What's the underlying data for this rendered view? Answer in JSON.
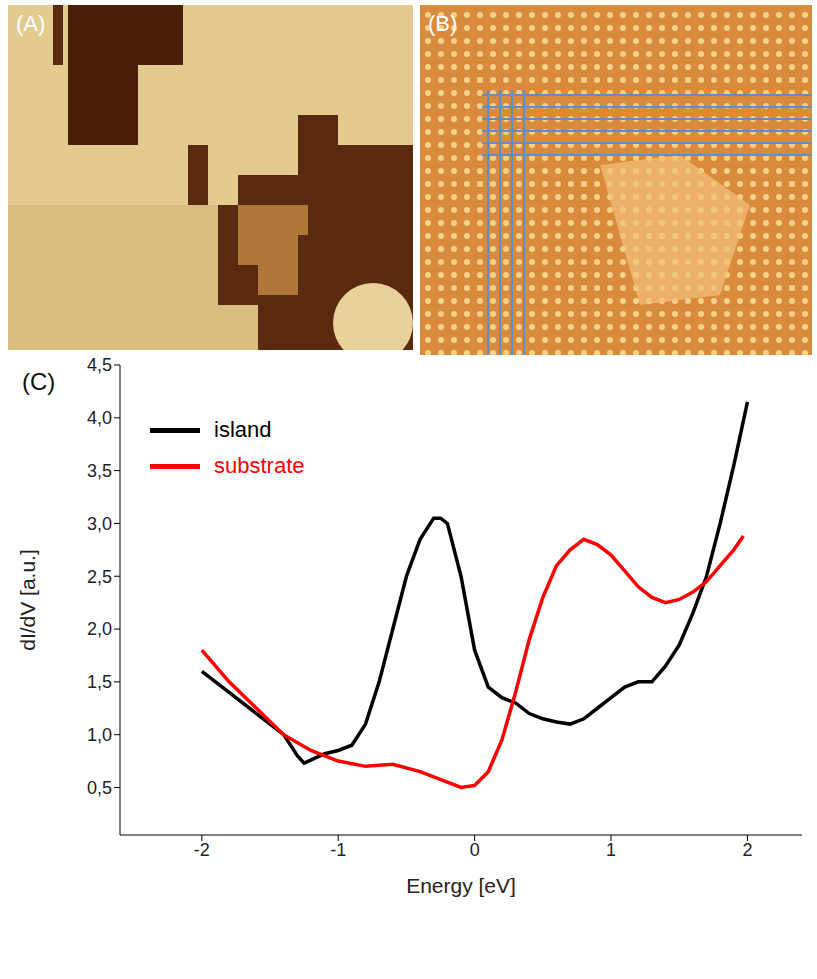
{
  "figure": {
    "panel_labels": [
      "(A)",
      "(B)"
    ]
  },
  "chart_data": {
    "type": "line",
    "panel_label": "(C)",
    "x_label": "Energy [eV]",
    "y_label": "dI/dV [a.u.]",
    "xlim": [
      -2.6,
      2.4
    ],
    "xticks": [
      -2,
      -1,
      0,
      1,
      2
    ],
    "ylim": [
      0.05,
      4.5
    ],
    "yticks": [
      {
        "value": 0.5,
        "label": "0,5"
      },
      {
        "value": 1.0,
        "label": "1,0"
      },
      {
        "value": 1.5,
        "label": "1,5"
      },
      {
        "value": 2.0,
        "label": "2,0"
      },
      {
        "value": 2.5,
        "label": "2,5"
      },
      {
        "value": 3.0,
        "label": "3,0"
      },
      {
        "value": 3.5,
        "label": "3,5"
      },
      {
        "value": 4.0,
        "label": "4,0"
      },
      {
        "value": 4.5,
        "label": "4,5"
      }
    ],
    "grid": false,
    "legend": "upper left",
    "series": [
      {
        "name": "island",
        "color": "#000000",
        "x": [
          -2,
          -1.8,
          -1.6,
          -1.4,
          -1.3,
          -1.25,
          -1.1,
          -1.0,
          -0.9,
          -0.8,
          -0.7,
          -0.6,
          -0.5,
          -0.4,
          -0.3,
          -0.25,
          -0.2,
          -0.1,
          0,
          0.1,
          0.2,
          0.3,
          0.4,
          0.5,
          0.6,
          0.7,
          0.8,
          0.9,
          1.0,
          1.1,
          1.2,
          1.3,
          1.4,
          1.5,
          1.6,
          1.7,
          1.8,
          1.9,
          2.0
        ],
        "values": [
          1.6,
          1.4,
          1.2,
          1.0,
          0.8,
          0.73,
          0.82,
          0.85,
          0.9,
          1.1,
          1.5,
          2.0,
          2.5,
          2.85,
          3.05,
          3.05,
          3.0,
          2.5,
          1.8,
          1.45,
          1.35,
          1.3,
          1.2,
          1.15,
          1.12,
          1.1,
          1.15,
          1.25,
          1.35,
          1.45,
          1.5,
          1.5,
          1.65,
          1.85,
          2.15,
          2.5,
          3.0,
          3.55,
          4.15
        ]
      },
      {
        "name": "substrate",
        "color": "#ff0000",
        "x": [
          -2,
          -1.8,
          -1.6,
          -1.4,
          -1.2,
          -1.0,
          -0.8,
          -0.6,
          -0.4,
          -0.2,
          -0.1,
          0,
          0.1,
          0.2,
          0.3,
          0.4,
          0.5,
          0.6,
          0.7,
          0.8,
          0.9,
          1.0,
          1.1,
          1.2,
          1.3,
          1.4,
          1.5,
          1.6,
          1.7,
          1.8,
          1.9,
          1.97
        ],
        "values": [
          1.8,
          1.5,
          1.25,
          1.0,
          0.85,
          0.75,
          0.7,
          0.72,
          0.65,
          0.55,
          0.5,
          0.52,
          0.65,
          0.95,
          1.4,
          1.9,
          2.3,
          2.6,
          2.75,
          2.85,
          2.8,
          2.7,
          2.55,
          2.4,
          2.3,
          2.25,
          2.28,
          2.35,
          2.45,
          2.6,
          2.75,
          2.88
        ]
      }
    ]
  }
}
